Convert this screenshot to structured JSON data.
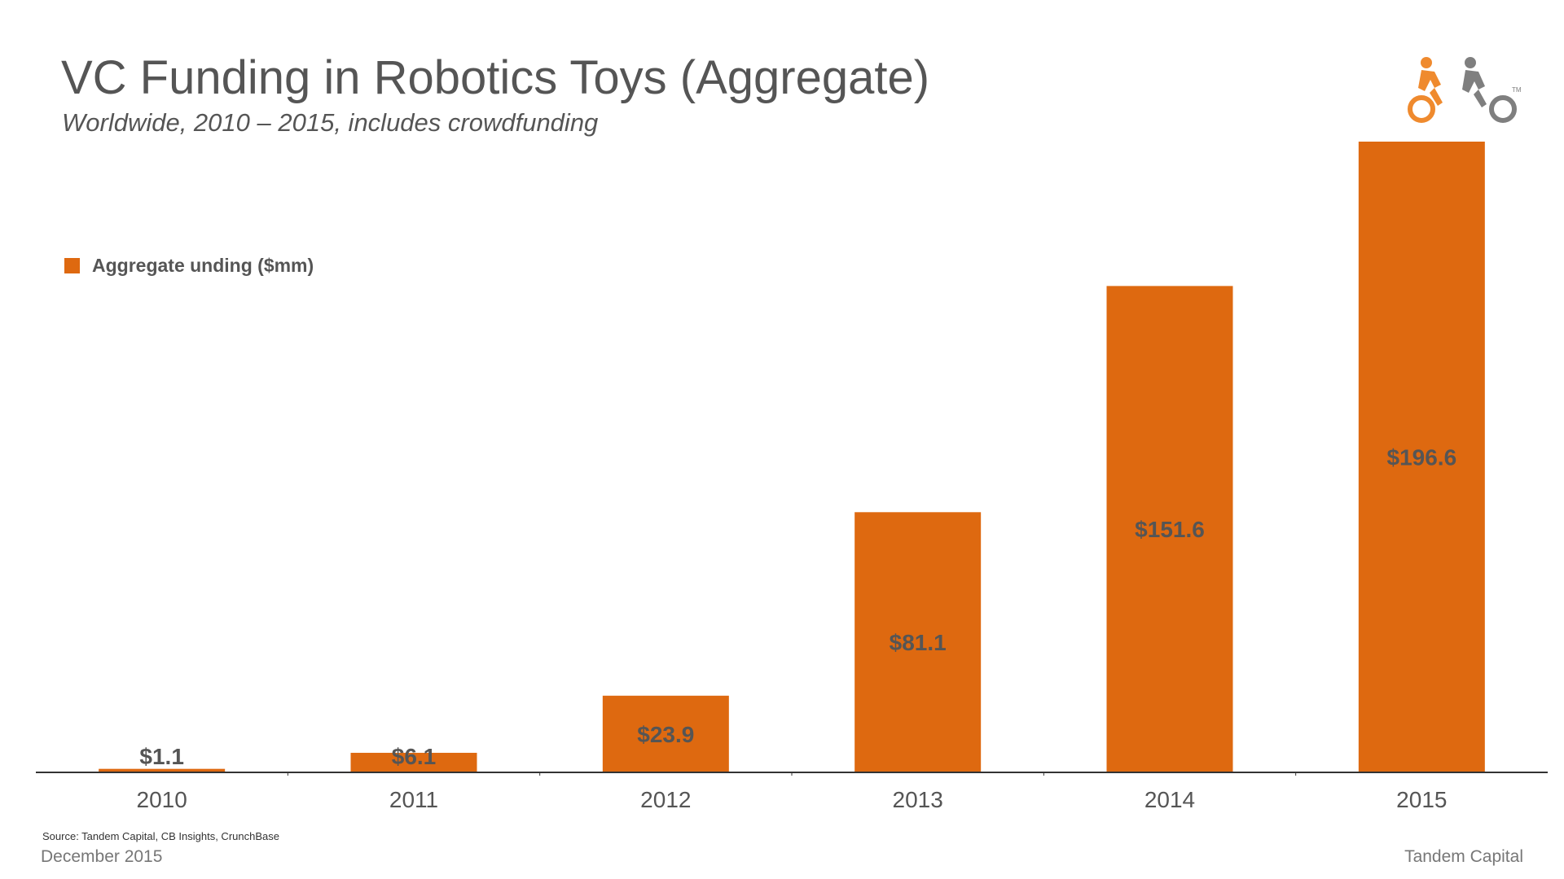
{
  "header": {
    "title": "VC Funding in Robotics Toys (Aggregate)",
    "subtitle": "Worldwide, 2010 – 2015, includes crowdfunding"
  },
  "logo": {
    "icon": "tandem-bicycle-riders-icon",
    "trademark": "TM",
    "colors": {
      "front_rider": "#EF8A2E",
      "back_rider": "#7F7F7F"
    }
  },
  "colors": {
    "bar": "#DE6910",
    "data_label": "#555555",
    "axis": "#333333",
    "text": "#555555"
  },
  "chart_data": {
    "type": "bar",
    "title": "VC Funding in Robotics Toys (Aggregate)",
    "subtitle": "Worldwide, 2010 – 2015, includes crowdfunding",
    "categories": [
      "2010",
      "2011",
      "2012",
      "2013",
      "2014",
      "2015"
    ],
    "series": [
      {
        "name": "Aggregate unding ($mm)",
        "values": [
          1.1,
          6.1,
          23.9,
          81.1,
          151.6,
          196.6
        ],
        "labels": [
          "$1.1",
          "$6.1",
          "$23.9",
          "$81.1",
          "$151.6",
          "$196.6"
        ]
      }
    ],
    "xlabel": "",
    "ylabel": "",
    "ylim": [
      0,
      200
    ],
    "grid": false,
    "legend": "top-left"
  },
  "footer": {
    "source": "Source: Tandem Capital, CB Insights, CrunchBase",
    "date": "December 2015",
    "company": "Tandem Capital"
  }
}
